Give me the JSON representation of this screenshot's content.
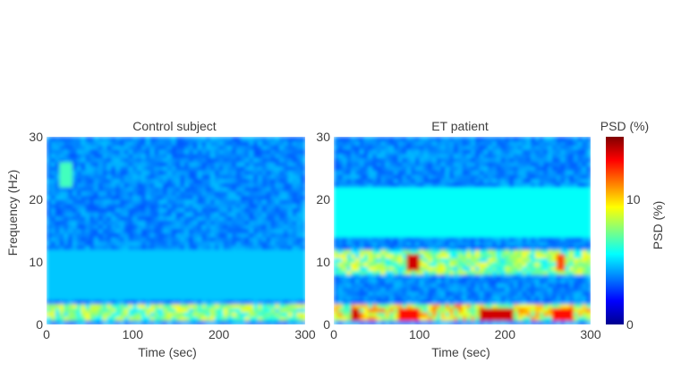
{
  "figure": {
    "colorbar": {
      "title": "PSD (%)",
      "label": "PSD (%)",
      "ticks": [
        0,
        10
      ],
      "range": [
        0,
        15
      ],
      "colormap": "jet"
    }
  },
  "chart_data": [
    {
      "type": "heatmap",
      "title": "Control subject",
      "xlabel": "Time (sec)",
      "ylabel": "Frequency (Hz)",
      "xlim": [
        0,
        300
      ],
      "ylim": [
        0,
        30
      ],
      "xticks": [
        0,
        100,
        200,
        300
      ],
      "yticks": [
        0,
        10,
        20,
        30
      ],
      "value_label": "PSD (%)",
      "value_range": [
        0,
        15
      ],
      "background_level": 3,
      "features": [
        {
          "band_hz": [
            1,
            3
          ],
          "time_sec": [
            0,
            300
          ],
          "level": 8,
          "note": "intermittent low-frequency band"
        },
        {
          "band_hz": [
            22,
            26
          ],
          "time_sec": [
            15,
            30
          ],
          "level": 6
        },
        {
          "band_hz": [
            4,
            12
          ],
          "time_sec": [
            0,
            300
          ],
          "level": 4
        }
      ]
    },
    {
      "type": "heatmap",
      "title": "ET patient",
      "xlabel": "Time (sec)",
      "ylabel": "",
      "xlim": [
        0,
        300
      ],
      "ylim": [
        0,
        30
      ],
      "xticks": [
        0,
        100,
        200,
        300
      ],
      "yticks": [
        0,
        10,
        20,
        30
      ],
      "value_label": "PSD (%)",
      "value_range": [
        0,
        15
      ],
      "background_level": 3,
      "features": [
        {
          "band_hz": [
            0.5,
            3
          ],
          "time_sec": [
            0,
            300
          ],
          "level": 10,
          "note": "strong low-frequency band"
        },
        {
          "band_hz": [
            0.5,
            2.5
          ],
          "time_sec": [
            170,
            210
          ],
          "level": 14
        },
        {
          "band_hz": [
            0.5,
            2.5
          ],
          "time_sec": [
            20,
            30
          ],
          "level": 14
        },
        {
          "band_hz": [
            0.5,
            2.5
          ],
          "time_sec": [
            75,
            100
          ],
          "level": 13
        },
        {
          "band_hz": [
            0.5,
            2.5
          ],
          "time_sec": [
            255,
            280
          ],
          "level": 13
        },
        {
          "band_hz": [
            8,
            12
          ],
          "time_sec": [
            0,
            300
          ],
          "level": 8,
          "note": "tremor band around 10 Hz"
        },
        {
          "band_hz": [
            9,
            11
          ],
          "time_sec": [
            85,
            100
          ],
          "level": 14
        },
        {
          "band_hz": [
            9,
            11
          ],
          "time_sec": [
            260,
            270
          ],
          "level": 12
        },
        {
          "band_hz": [
            14,
            22
          ],
          "time_sec": [
            0,
            300
          ],
          "level": 5
        }
      ]
    }
  ]
}
